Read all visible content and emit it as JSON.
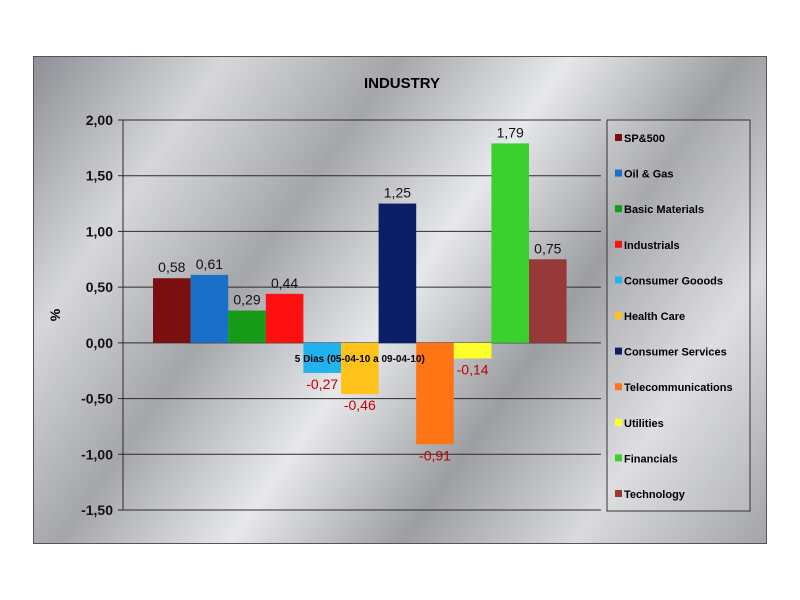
{
  "chart_data": {
    "type": "bar",
    "title": "INDUSTRY",
    "ylabel": "%",
    "xlabel": "5 Dias (05-04-10 a 09-04-10)",
    "ylim": [
      -1.5,
      2.0
    ],
    "yticks": [
      "2,00",
      "1,50",
      "1,00",
      "0,50",
      "0,00",
      "-0,50",
      "-1,00",
      "-1,50"
    ],
    "ytick_values": [
      2.0,
      1.5,
      1.0,
      0.5,
      0.0,
      -0.5,
      -1.0,
      -1.5
    ],
    "grid": true,
    "legend_position": "right",
    "series": [
      {
        "name": "SP&500",
        "value": 0.58,
        "label": "0,58",
        "color": "#7b0e0e"
      },
      {
        "name": "Oil & Gas",
        "value": 0.61,
        "label": "0,61",
        "color": "#1a6fc9"
      },
      {
        "name": "Basic Materials",
        "value": 0.29,
        "label": "0,29",
        "color": "#179a17"
      },
      {
        "name": "Industrials",
        "value": 0.44,
        "label": "0,44",
        "color": "#ff1010"
      },
      {
        "name": "Consumer Gooods",
        "value": -0.27,
        "label": "-0,27",
        "color": "#22b3ef"
      },
      {
        "name": "Health Care",
        "value": -0.46,
        "label": "-0,46",
        "color": "#ffc21a"
      },
      {
        "name": "Consumer Services",
        "value": 1.25,
        "label": "1,25",
        "color": "#0b1e66"
      },
      {
        "name": "Telecommunications",
        "value": -0.91,
        "label": "-0,91",
        "color": "#ff7415"
      },
      {
        "name": "Utilities",
        "value": -0.14,
        "label": "-0,14",
        "color": "#ffff2a"
      },
      {
        "name": "Financials",
        "value": 1.79,
        "label": "1,79",
        "color": "#3ad12e"
      },
      {
        "name": "Technology",
        "value": 0.75,
        "label": "0,75",
        "color": "#983939"
      }
    ],
    "label_colors": {
      "positive": "#111111",
      "negative": "#c00000"
    }
  }
}
